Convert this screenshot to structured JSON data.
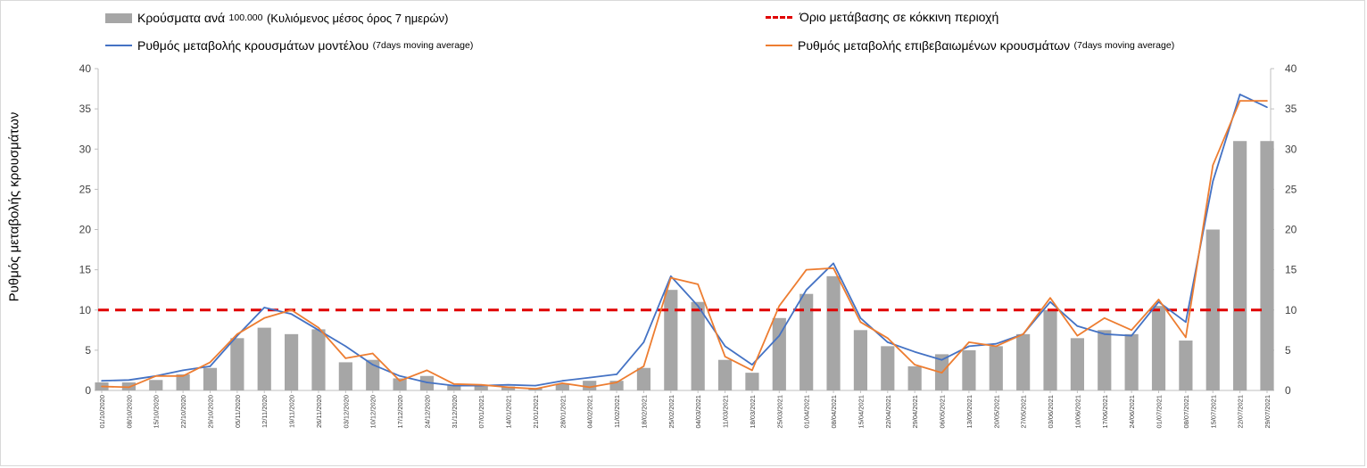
{
  "legend": {
    "bars": {
      "label": "Κρούσματα ανά",
      "small": "100.000",
      "rest": "(Κυλιόμενος μέσος όρος 7 ημερών)"
    },
    "threshold": {
      "label": "Όριο μετάβασης σε κόκκινη περιοχή"
    },
    "model": {
      "label": "Ρυθμός μεταβολής κρουσμάτων μοντέλου",
      "small": "(7days moving average)"
    },
    "confirmed": {
      "label": "Ρυθμός μεταβολής επιβεβαιωμένων κρουσμάτων",
      "small": "(7days moving average)"
    }
  },
  "colors": {
    "bars": "#a6a6a6",
    "model": "#4472c4",
    "confirmed": "#ed7d31",
    "threshold": "#e00000",
    "axis": "#bfbfbf"
  },
  "chart_data": {
    "type": "bar",
    "ylabel": "Ρυθμός μεταβολής κρουσμάτων",
    "ylim": [
      0,
      40
    ],
    "yticks": [
      0,
      5,
      10,
      15,
      20,
      25,
      30,
      35,
      40
    ],
    "threshold": 10,
    "x": [
      "01/10/2020",
      "08/10/2020",
      "15/10/2020",
      "22/10/2020",
      "29/10/2020",
      "05/11/2020",
      "12/11/2020",
      "19/11/2020",
      "26/11/2020",
      "03/12/2020",
      "10/12/2020",
      "17/12/2020",
      "24/12/2020",
      "31/12/2020",
      "07/01/2021",
      "14/01/2021",
      "21/01/2021",
      "28/01/2021",
      "04/02/2021",
      "11/02/2021",
      "18/02/2021",
      "25/02/2021",
      "04/03/2021",
      "11/03/2021",
      "18/03/2021",
      "25/03/2021",
      "01/04/2021",
      "08/04/2021",
      "15/04/2021",
      "22/04/2021",
      "29/04/2021",
      "06/05/2021",
      "13/05/2021",
      "20/05/2021",
      "27/05/2021",
      "03/06/2021",
      "10/06/2021",
      "17/06/2021",
      "24/06/2021",
      "01/07/2021",
      "08/07/2021",
      "15/07/2021",
      "22/07/2021",
      "29/07/2021"
    ],
    "series": [
      {
        "name": "Κρούσματα ανά 100.000 (Κυλιόμενος μέσος όρος 7 ημερών)",
        "type": "bar",
        "values": [
          1.0,
          1.0,
          1.3,
          2.0,
          2.8,
          6.5,
          7.8,
          7.0,
          7.6,
          3.5,
          3.8,
          1.5,
          1.8,
          0.6,
          0.5,
          0.5,
          0.3,
          0.8,
          1.2,
          1.2,
          2.8,
          12.5,
          11.0,
          3.8,
          2.2,
          9.0,
          12.0,
          14.2,
          7.5,
          5.5,
          3.0,
          4.5,
          5.0,
          5.5,
          7.0,
          10.0,
          6.5,
          7.5,
          7.0,
          10.5,
          6.2,
          20.0,
          31.0,
          31.0
        ]
      },
      {
        "name": "Ρυθμός μεταβολής κρουσμάτων μοντέλου (7days moving average)",
        "type": "line",
        "values": [
          1.2,
          1.3,
          1.8,
          2.5,
          3.0,
          6.8,
          10.3,
          9.5,
          7.5,
          5.5,
          3.2,
          1.8,
          1.0,
          0.6,
          0.6,
          0.7,
          0.6,
          1.2,
          1.6,
          2.0,
          6.0,
          14.2,
          10.5,
          5.5,
          3.2,
          6.8,
          12.5,
          15.8,
          9.0,
          6.0,
          4.8,
          3.8,
          5.5,
          5.8,
          7.0,
          11.0,
          8.0,
          7.0,
          6.8,
          11.0,
          8.5,
          26.0,
          36.8,
          35.2
        ]
      },
      {
        "name": "Ρυθμός μεταβολής επιβεβαιωμένων κρουσμάτων (7days moving average)",
        "type": "line",
        "values": [
          0.5,
          0.4,
          1.8,
          1.8,
          3.5,
          7.0,
          9.0,
          10.0,
          7.8,
          4.0,
          4.6,
          1.2,
          2.5,
          0.8,
          0.7,
          0.4,
          0.2,
          0.9,
          0.4,
          1.0,
          3.0,
          14.0,
          13.2,
          4.2,
          2.5,
          10.5,
          15.0,
          15.2,
          8.5,
          6.5,
          3.2,
          2.2,
          6.0,
          5.5,
          7.0,
          11.5,
          6.8,
          9.0,
          7.5,
          11.3,
          6.6,
          28.0,
          36.0,
          36.0
        ]
      }
    ]
  }
}
